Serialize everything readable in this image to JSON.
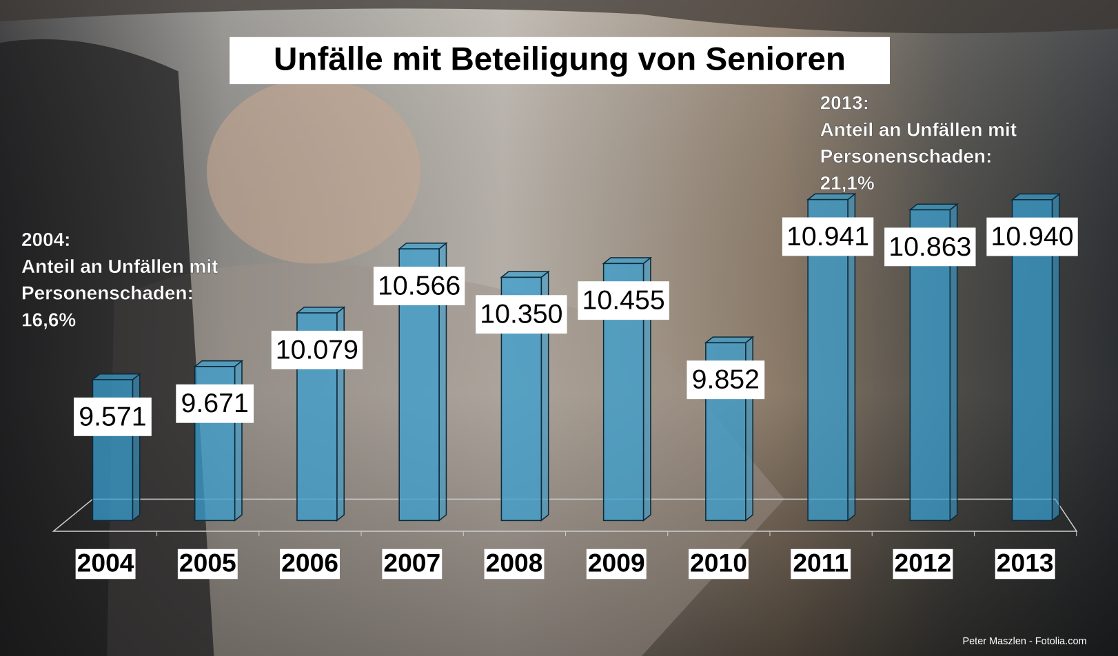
{
  "chart_data": {
    "type": "bar",
    "title": "Unfälle mit Beteiligung von Senioren",
    "categories": [
      "2004",
      "2005",
      "2006",
      "2007",
      "2008",
      "2009",
      "2010",
      "2011",
      "2012",
      "2013"
    ],
    "values": [
      9571,
      9671,
      10079,
      10566,
      10350,
      10455,
      9852,
      10941,
      10863,
      10940
    ],
    "value_labels": [
      "9.571",
      "9.671",
      "10.079",
      "10.566",
      "10.350",
      "10.455",
      "9.852",
      "10.941",
      "10.863",
      "10.940"
    ],
    "color": "#3a9fd0",
    "ylim": [
      8500,
      11000
    ],
    "annotations": [
      {
        "lines": [
          "2004:",
          "Anteil an Unfällen mit",
          "Personenschaden:",
          "16,6%"
        ]
      },
      {
        "lines": [
          "2013:",
          "Anteil an Unfällen mit",
          "Personenschaden:",
          "21,1%"
        ]
      }
    ],
    "credit": "Peter Maszlen - Fotolia.com"
  }
}
